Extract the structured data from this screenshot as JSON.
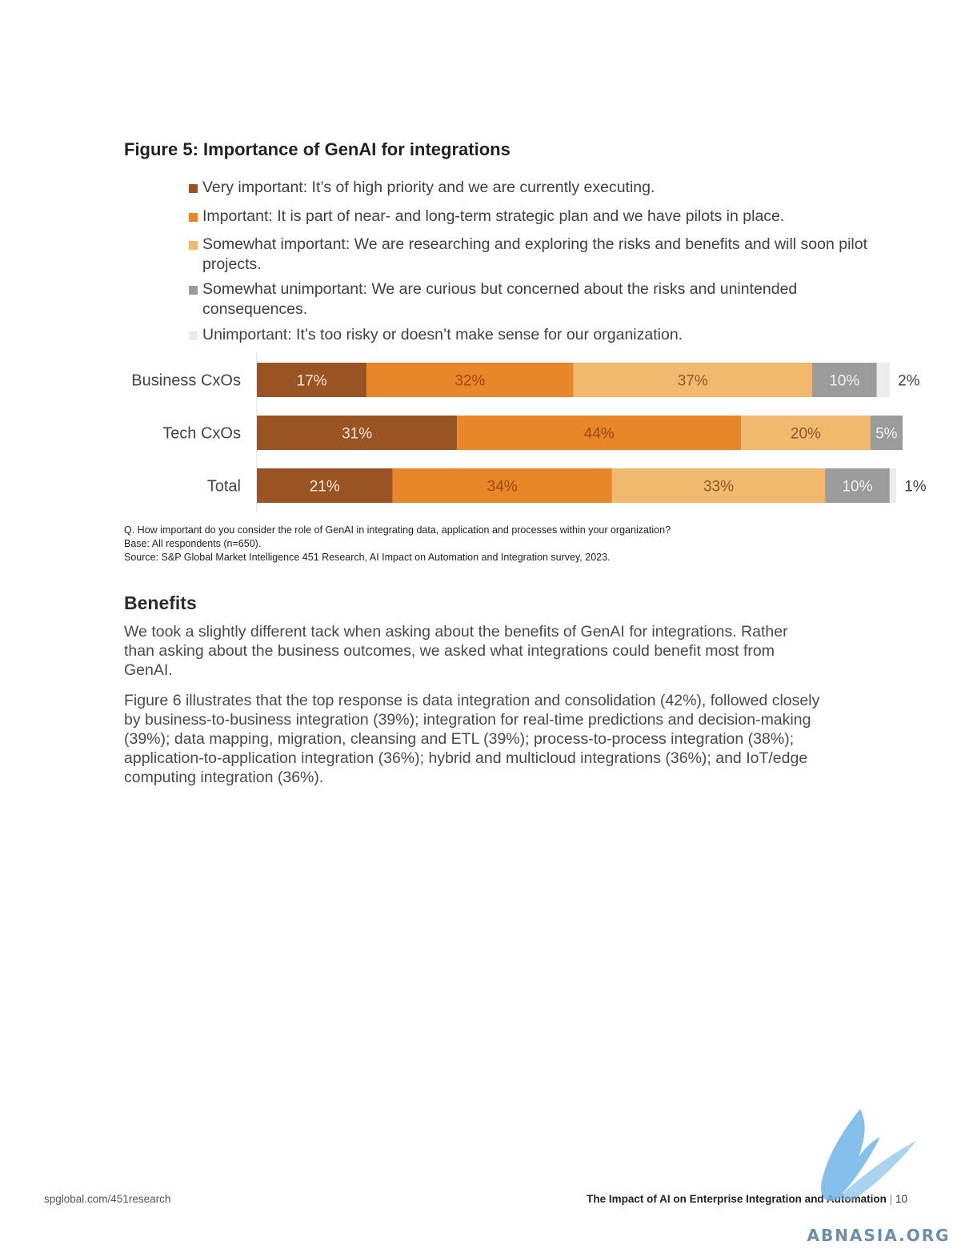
{
  "figure": {
    "title": "Figure 5: Importance of GenAI for integrations"
  },
  "legend": [
    {
      "label": "Very important: It’s of high priority and we are currently executing.",
      "color": "#9a5424"
    },
    {
      "label": "Important: It is part of near- and long-term strategic plan and we have pilots in place.",
      "color": "#e8862a"
    },
    {
      "label": "Somewhat important: We are researching and exploring the risks and benefits and will soon pilot projects.",
      "color": "#f2b86e"
    },
    {
      "label": "Somewhat unimportant: We are curious but concerned about the risks and unintended consequences.",
      "color": "#9b9b9b"
    },
    {
      "label": "Unimportant: It’s too risky or doesn’t make sense for our organization.",
      "color": "#ebebeb"
    }
  ],
  "chart_data": {
    "type": "bar",
    "orientation": "horizontal",
    "stacked": true,
    "categories": [
      "Business CxOs",
      "Tech CxOs",
      "Total"
    ],
    "series": [
      {
        "name": "Very important",
        "color": "#9a5424",
        "values": [
          17,
          31,
          21
        ]
      },
      {
        "name": "Important",
        "color": "#e8862a",
        "values": [
          32,
          44,
          34
        ]
      },
      {
        "name": "Somewhat important",
        "color": "#f2b86e",
        "values": [
          37,
          20,
          33
        ]
      },
      {
        "name": "Somewhat unimportant",
        "color": "#9b9b9b",
        "values": [
          10,
          5,
          10
        ]
      },
      {
        "name": "Unimportant",
        "color": "#ebebeb",
        "values": [
          2,
          0,
          1
        ]
      }
    ],
    "labels": [
      [
        "17%",
        "32%",
        "37%",
        "10%",
        "2%"
      ],
      [
        "31%",
        "44%",
        "20%",
        "5%",
        ""
      ],
      [
        "21%",
        "34%",
        "33%",
        "10%",
        "1%"
      ]
    ],
    "xlim": [
      0,
      100
    ],
    "grid": false,
    "legend_position": "top"
  },
  "notes": {
    "question": "Q. How important do you consider the role of GenAI in integrating data, application and processes within your organization?",
    "base": "Base: All respondents (n=650).",
    "source": "Source: S&P Global Market Intelligence 451 Research, AI Impact on Automation and Integration survey, 2023."
  },
  "benefits": {
    "title": "Benefits",
    "paragraphs": [
      "We took a slightly different tack when asking about the benefits of GenAI for integrations. Rather than asking about the business outcomes, we asked what integrations could benefit most from GenAI.",
      "Figure 6 illustrates that the top response is data integration and consolidation (42%), followed closely by business-to-business integration (39%); integration for real-time predictions and decision-making (39%); data mapping, migration, cleansing and ETL (39%); process-to-process integration (38%); application-to-application integration (36%); hybrid and multicloud integrations (36%); and IoT/edge computing integration (36%)."
    ]
  },
  "footer": {
    "url": "spglobal.com/451research",
    "doc_title": "The Impact of AI on Enterprise Integration and Automation",
    "separator": "|",
    "page_number": "10"
  },
  "watermark": {
    "text": "ABNASIA.ORG"
  }
}
